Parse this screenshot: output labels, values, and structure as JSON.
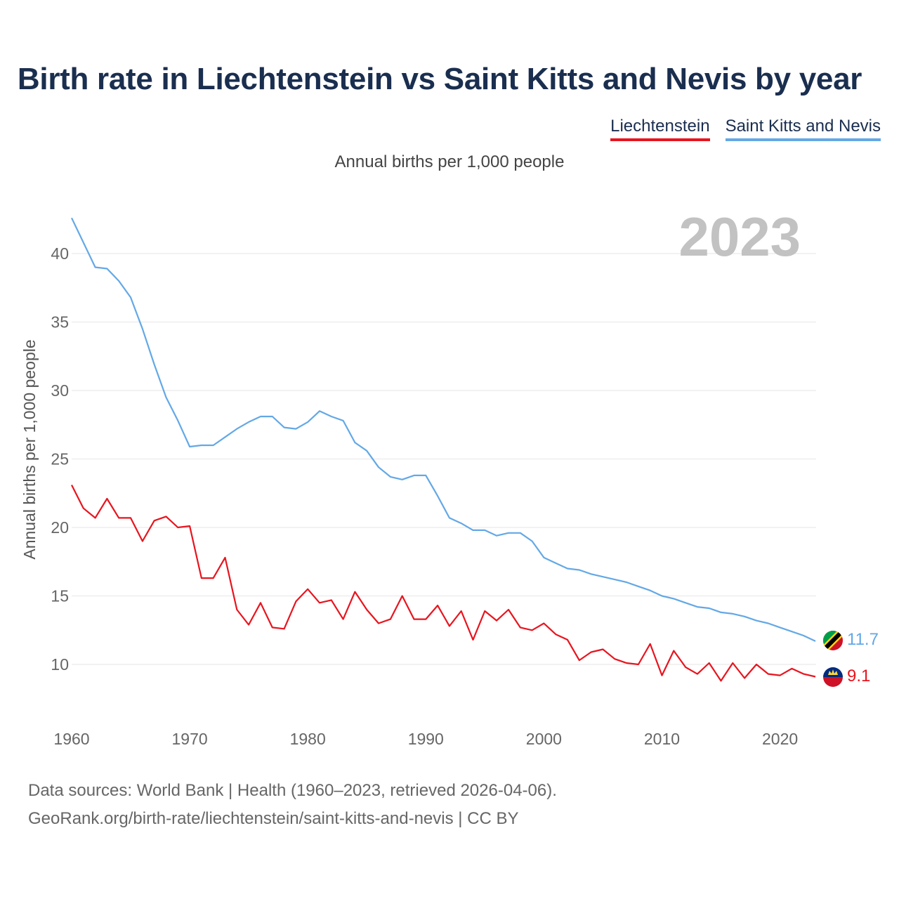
{
  "header": {
    "title": "Birth rate in Liechtenstein vs Saint Kitts and Nevis by year",
    "subtitle": "Annual births per 1,000 people",
    "year": "2023"
  },
  "legend": [
    {
      "label": "Liechtenstein",
      "color": "#e8141e"
    },
    {
      "label": "Saint Kitts and Nevis",
      "color": "#63a8e6"
    }
  ],
  "chart_data": {
    "type": "line",
    "ylabel": "Annual births per 1,000 people",
    "xlim": [
      1960,
      2023
    ],
    "ylim": [
      6,
      43
    ],
    "y_ticks": [
      10,
      15,
      20,
      25,
      30,
      35,
      40
    ],
    "x_ticks": [
      1960,
      1970,
      1980,
      1990,
      2000,
      2010,
      2020
    ],
    "x": [
      1960,
      1961,
      1962,
      1963,
      1964,
      1965,
      1966,
      1967,
      1968,
      1969,
      1970,
      1971,
      1972,
      1973,
      1974,
      1975,
      1976,
      1977,
      1978,
      1979,
      1980,
      1981,
      1982,
      1983,
      1984,
      1985,
      1986,
      1987,
      1988,
      1989,
      1990,
      1991,
      1992,
      1993,
      1994,
      1995,
      1996,
      1997,
      1998,
      1999,
      2000,
      2001,
      2002,
      2003,
      2004,
      2005,
      2006,
      2007,
      2008,
      2009,
      2010,
      2011,
      2012,
      2013,
      2014,
      2015,
      2016,
      2017,
      2018,
      2019,
      2020,
      2021,
      2022,
      2023
    ],
    "series": [
      {
        "name": "Liechtenstein",
        "color": "#e8141e",
        "end_label": "9.1",
        "values": [
          23.1,
          21.4,
          20.7,
          22.1,
          20.7,
          20.7,
          19.0,
          20.5,
          20.8,
          20.0,
          20.1,
          16.3,
          16.3,
          17.8,
          14.0,
          12.9,
          14.5,
          12.7,
          12.6,
          14.6,
          15.5,
          14.5,
          14.7,
          13.3,
          15.3,
          14.0,
          13.0,
          13.3,
          15.0,
          13.3,
          13.3,
          14.3,
          12.8,
          13.9,
          11.8,
          13.9,
          13.2,
          14.0,
          12.7,
          12.5,
          13.0,
          12.2,
          11.8,
          10.3,
          10.9,
          11.1,
          10.4,
          10.1,
          10.0,
          11.5,
          9.2,
          11.0,
          9.8,
          9.3,
          10.1,
          8.8,
          10.1,
          9.0,
          10.0,
          9.3,
          9.2,
          9.7,
          9.3,
          9.1
        ]
      },
      {
        "name": "Saint Kitts and Nevis",
        "color": "#63a8e6",
        "end_label": "11.7",
        "values": [
          42.6,
          40.8,
          39.0,
          38.9,
          38.0,
          36.8,
          34.5,
          31.9,
          29.5,
          27.8,
          25.9,
          26.0,
          26.0,
          26.6,
          27.2,
          27.7,
          28.1,
          28.1,
          27.3,
          27.2,
          27.7,
          28.5,
          28.1,
          27.8,
          26.2,
          25.6,
          24.4,
          23.7,
          23.5,
          23.8,
          23.8,
          22.3,
          20.7,
          20.3,
          19.8,
          19.8,
          19.4,
          19.6,
          19.6,
          19.0,
          17.8,
          17.4,
          17.0,
          16.9,
          16.6,
          16.4,
          16.2,
          16.0,
          15.7,
          15.4,
          15.0,
          14.8,
          14.5,
          14.2,
          14.1,
          13.8,
          13.7,
          13.5,
          13.2,
          13.0,
          12.7,
          12.4,
          12.1,
          11.7
        ]
      }
    ]
  },
  "footer": {
    "line1": "Data sources: World Bank | Health (1960–2023, retrieved 2026-04-06).",
    "line2": "GeoRank.org/birth-rate/liechtenstein/saint-kitts-and-nevis | CC BY"
  }
}
